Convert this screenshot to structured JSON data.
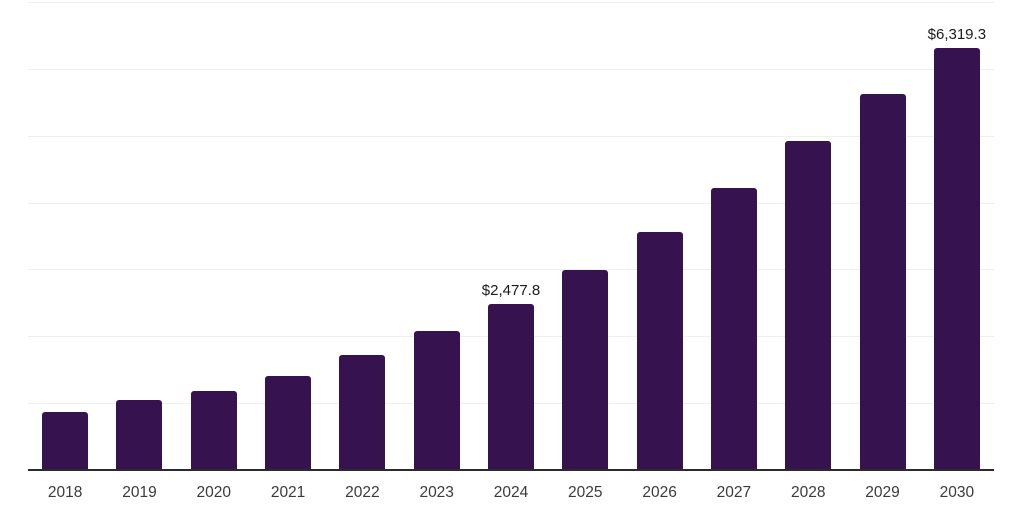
{
  "chart_data": {
    "type": "bar",
    "title": "",
    "xlabel": "",
    "ylabel": "",
    "categories": [
      "2018",
      "2019",
      "2020",
      "2021",
      "2022",
      "2023",
      "2024",
      "2025",
      "2026",
      "2027",
      "2028",
      "2029",
      "2030"
    ],
    "values": [
      870,
      1040,
      1185,
      1405,
      1725,
      2075,
      2477.8,
      2995,
      3565,
      4220,
      4915,
      5625,
      6319.3
    ],
    "labeled_values": {
      "2024": "$2,477.8",
      "2030": "$6,319.3"
    },
    "ylim": [
      0,
      7000
    ],
    "gridline_step": 1000,
    "grid": "horizontal-only",
    "legend": "none",
    "y_tick_labels_visible": false,
    "colors": {
      "bar": "#36124F",
      "axis": "#2b2b2b",
      "gridline": "#efefef",
      "x_label_text": "#3a3a3a",
      "value_label_text": "#1b1b1b",
      "background": "#ffffff"
    }
  }
}
